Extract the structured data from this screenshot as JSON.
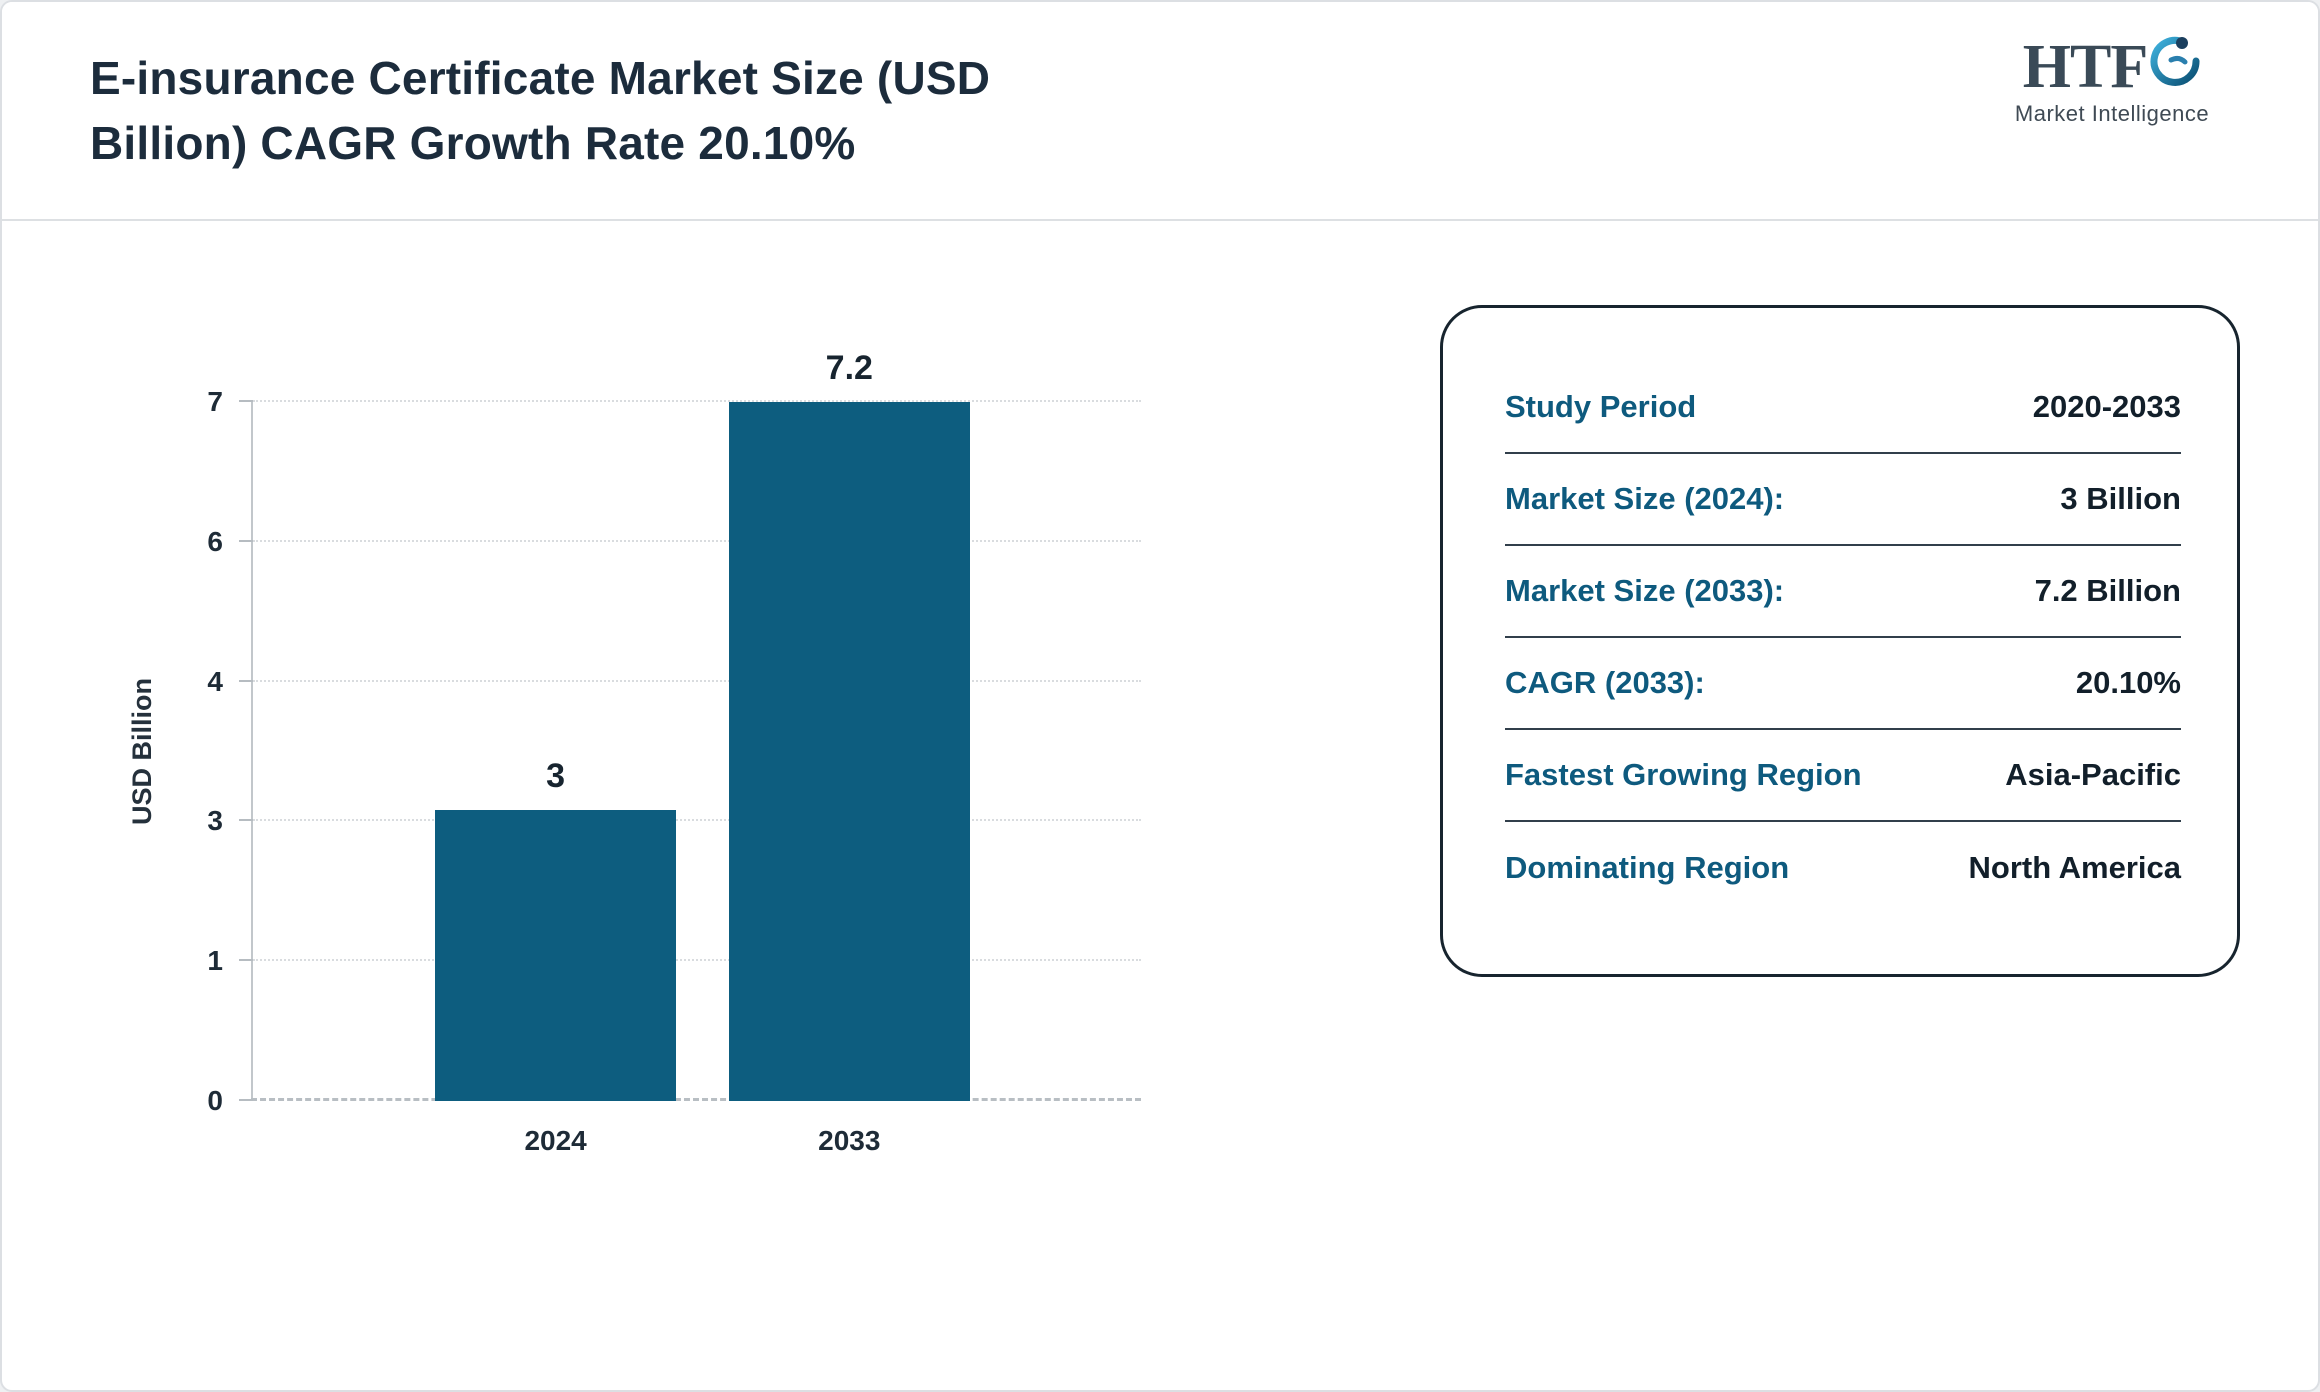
{
  "header": {
    "title_line1": "E-insurance Certificate Market Size (USD",
    "title_line2": "Billion) CAGR Growth Rate 20.10%",
    "logo": {
      "text": "HTF",
      "subtext": "Market Intelligence"
    }
  },
  "chart_data": {
    "type": "bar",
    "title": "E-insurance Certificate Market Size (USD Billion) CAGR Growth Rate 20.10%",
    "categories": [
      "2024",
      "2033"
    ],
    "values": [
      3,
      7.2
    ],
    "bar_labels": [
      "3",
      "7.2"
    ],
    "xlabel": "",
    "ylabel": "USD Billion",
    "ylim": [
      0,
      7.2
    ],
    "yticks": [
      {
        "value": 0,
        "label": "0"
      },
      {
        "value": 1.44,
        "label": "1"
      },
      {
        "value": 2.88,
        "label": "3"
      },
      {
        "value": 4.32,
        "label": "4"
      },
      {
        "value": 5.76,
        "label": "6"
      },
      {
        "value": 7.2,
        "label": "7"
      }
    ],
    "grid": true,
    "legend": false,
    "bar_color": "#0d5d7f"
  },
  "info_panel": {
    "rows": [
      {
        "label": "Study Period",
        "value": "2020-2033"
      },
      {
        "label": "Market Size (2024):",
        "value": "3 Billion"
      },
      {
        "label": "Market Size (2033):",
        "value": "7.2 Billion"
      },
      {
        "label": "CAGR (2033):",
        "value": "20.10%"
      },
      {
        "label": "Fastest Growing Region",
        "value": "Asia-Pacific"
      },
      {
        "label": "Dominating Region",
        "value": "North America"
      }
    ]
  },
  "colors": {
    "bar": "#0d5d7f",
    "label_teal": "#0e5a7e",
    "title_navy": "#1c2c3c",
    "value_navy": "#121f2a"
  }
}
